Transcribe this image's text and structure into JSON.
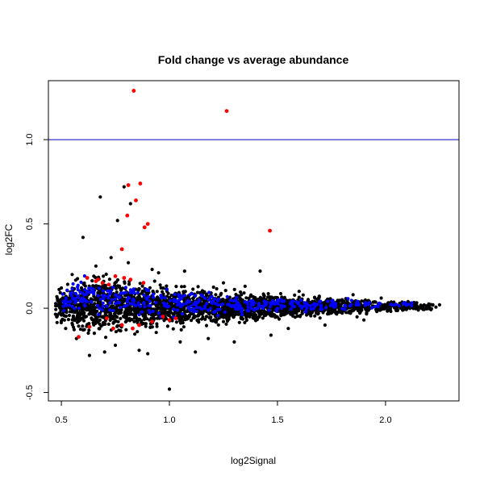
{
  "chart_data": {
    "type": "scatter",
    "title": "Fold change vs average abundance",
    "xlabel": "log2Signal",
    "ylabel": "log2FC",
    "xlim": [
      0.44,
      2.34
    ],
    "ylim": [
      -0.55,
      1.35
    ],
    "x_ticks": [
      0.5,
      1.0,
      1.5,
      2.0
    ],
    "x_tick_labels": [
      "0.5",
      "1.0",
      "1.5",
      "2.0"
    ],
    "y_ticks": [
      -0.5,
      0.0,
      0.5,
      1.0
    ],
    "y_tick_labels": [
      "-0.5",
      "0.0",
      "0.5",
      "1.0"
    ],
    "reference_line": {
      "y": 1.0,
      "color": "#0000cc"
    },
    "grid": false,
    "legend": "none",
    "series": [
      {
        "color": "#000000",
        "points": [
          [
            0.6,
            0.42
          ],
          [
            0.68,
            0.66
          ],
          [
            0.79,
            0.72
          ],
          [
            0.76,
            0.52
          ],
          [
            0.82,
            0.62
          ],
          [
            0.95,
            0.21
          ],
          [
            1.07,
            0.22
          ],
          [
            1.42,
            0.22
          ],
          [
            1.0,
            -0.48
          ],
          [
            0.73,
            0.3
          ],
          [
            0.66,
            0.25
          ],
          [
            0.63,
            -0.28
          ],
          [
            0.9,
            -0.27
          ],
          [
            1.12,
            -0.26
          ],
          [
            1.47,
            -0.16
          ],
          [
            0.57,
            -0.18
          ],
          [
            0.86,
            -0.25
          ],
          [
            1.3,
            -0.2
          ],
          [
            0.7,
            -0.26
          ],
          [
            1.05,
            -0.2
          ],
          [
            1.72,
            -0.1
          ],
          [
            1.9,
            -0.07
          ],
          [
            0.81,
            0.27
          ],
          [
            1.25,
            0.15
          ],
          [
            0.55,
            0.2
          ],
          [
            0.5,
            0.12
          ],
          [
            0.48,
            -0.05
          ],
          [
            0.52,
            -0.12
          ],
          [
            1.6,
            0.1
          ],
          [
            2.25,
            0.02
          ],
          [
            2.2,
            0.025
          ],
          [
            2.1,
            0.03
          ],
          [
            1.98,
            0.06
          ],
          [
            1.85,
            0.08
          ],
          [
            1.55,
            -0.12
          ],
          [
            1.35,
            0.13
          ],
          [
            1.18,
            -0.18
          ],
          [
            0.92,
            0.23
          ],
          [
            0.75,
            -0.22
          ],
          [
            0.65,
            0.19
          ]
        ],
        "band": {
          "count": 2400,
          "x_range": [
            0.47,
            2.24
          ],
          "half_width": [
            [
              0.45,
              0.06
            ],
            [
              0.5,
              0.09
            ],
            [
              0.6,
              0.12
            ],
            [
              0.7,
              0.13
            ],
            [
              0.8,
              0.12
            ],
            [
              1.0,
              0.1
            ],
            [
              1.2,
              0.08
            ],
            [
              1.5,
              0.06
            ],
            [
              1.8,
              0.04
            ],
            [
              2.0,
              0.03
            ],
            [
              2.3,
              0.015
            ]
          ]
        }
      },
      {
        "color": "#0000ff",
        "band": {
          "count": 420,
          "x_range": [
            0.5,
            2.15
          ],
          "center": [
            [
              0.5,
              0.04
            ],
            [
              0.6,
              0.08
            ],
            [
              0.7,
              0.07
            ],
            [
              0.8,
              0.05
            ],
            [
              1.0,
              0.03
            ],
            [
              1.3,
              0.02
            ],
            [
              1.6,
              0.02
            ],
            [
              2.0,
              0.02
            ],
            [
              2.3,
              0.02
            ]
          ],
          "spread": [
            [
              0.5,
              0.04
            ],
            [
              0.7,
              0.05
            ],
            [
              1.0,
              0.035
            ],
            [
              1.5,
              0.02
            ],
            [
              2.0,
              0.01
            ],
            [
              2.3,
              0.008
            ]
          ]
        }
      },
      {
        "color": "#ff0000",
        "points": [
          [
            0.835,
            1.29
          ],
          [
            1.265,
            1.17
          ],
          [
            0.81,
            0.73
          ],
          [
            0.865,
            0.74
          ],
          [
            0.845,
            0.64
          ],
          [
            0.805,
            0.55
          ],
          [
            0.9,
            0.5
          ],
          [
            0.885,
            0.48
          ],
          [
            1.465,
            0.46
          ],
          [
            0.78,
            0.35
          ],
          [
            0.62,
            0.18
          ],
          [
            0.66,
            0.16
          ],
          [
            0.69,
            0.15
          ],
          [
            0.75,
            0.19
          ],
          [
            0.79,
            0.18
          ],
          [
            0.82,
            0.17
          ],
          [
            0.88,
            0.15
          ],
          [
            0.72,
            0.14
          ],
          [
            0.63,
            -0.11
          ],
          [
            0.71,
            -0.06
          ],
          [
            0.78,
            -0.1
          ],
          [
            0.83,
            -0.12
          ],
          [
            0.97,
            -0.05
          ],
          [
            1.0,
            -0.07
          ],
          [
            1.03,
            -0.06
          ],
          [
            0.92,
            -0.08
          ],
          [
            0.58,
            -0.17
          ],
          [
            0.86,
            -0.1
          ],
          [
            0.74,
            -0.12
          ],
          [
            0.67,
            0.17
          ]
        ]
      }
    ]
  }
}
